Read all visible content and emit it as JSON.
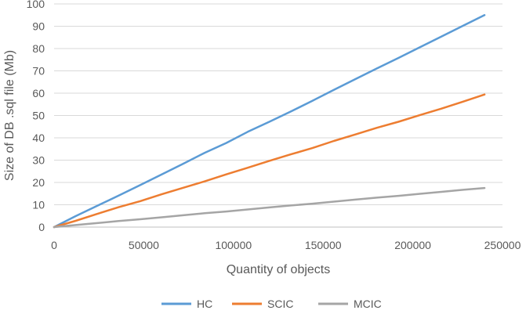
{
  "chart_data": {
    "type": "line",
    "title": "",
    "xlabel": "Quantity of objects",
    "ylabel": "Size of DB .sql file (Mb)",
    "xlim": [
      0,
      250000
    ],
    "ylim": [
      0,
      100
    ],
    "x_ticks": [
      "0",
      "50000",
      "100000",
      "150000",
      "200000",
      "250000"
    ],
    "y_ticks": [
      "0",
      "10",
      "20",
      "30",
      "40",
      "50",
      "60",
      "70",
      "80",
      "90",
      "100"
    ],
    "grid": "horizontal",
    "legend_position": "bottom",
    "series": [
      {
        "name": "HC",
        "color": "#5B9BD5",
        "points": [
          [
            0,
            0
          ],
          [
            12000,
            4.9
          ],
          [
            24000,
            9.5
          ],
          [
            36000,
            14.1
          ],
          [
            48000,
            18.8
          ],
          [
            60000,
            23.6
          ],
          [
            72000,
            28.4
          ],
          [
            84000,
            33.3
          ],
          [
            96000,
            37.7
          ],
          [
            108000,
            42.7
          ],
          [
            120000,
            47.2
          ],
          [
            132000,
            51.8
          ],
          [
            144000,
            56.6
          ],
          [
            156000,
            61.5
          ],
          [
            168000,
            66.3
          ],
          [
            180000,
            71.1
          ],
          [
            192000,
            75.8
          ],
          [
            204000,
            80.6
          ],
          [
            216000,
            85.4
          ],
          [
            228000,
            90.2
          ],
          [
            240000,
            95.0
          ]
        ]
      },
      {
        "name": "SCIC",
        "color": "#ED7D31",
        "points": [
          [
            0,
            0
          ],
          [
            12000,
            2.8
          ],
          [
            24000,
            5.9
          ],
          [
            36000,
            8.9
          ],
          [
            48000,
            11.6
          ],
          [
            60000,
            14.7
          ],
          [
            72000,
            17.6
          ],
          [
            84000,
            20.5
          ],
          [
            96000,
            23.6
          ],
          [
            108000,
            26.6
          ],
          [
            120000,
            29.7
          ],
          [
            132000,
            32.6
          ],
          [
            144000,
            35.4
          ],
          [
            156000,
            38.6
          ],
          [
            168000,
            41.5
          ],
          [
            180000,
            44.5
          ],
          [
            192000,
            47.2
          ],
          [
            204000,
            50.2
          ],
          [
            216000,
            53.1
          ],
          [
            228000,
            56.2
          ],
          [
            240000,
            59.4
          ]
        ]
      },
      {
        "name": "MCIC",
        "color": "#A5A5A5",
        "points": [
          [
            0,
            0
          ],
          [
            12000,
            0.9
          ],
          [
            24000,
            1.8
          ],
          [
            36000,
            2.7
          ],
          [
            48000,
            3.5
          ],
          [
            60000,
            4.4
          ],
          [
            72000,
            5.3
          ],
          [
            84000,
            6.2
          ],
          [
            96000,
            7.0
          ],
          [
            108000,
            7.9
          ],
          [
            120000,
            8.8
          ],
          [
            132000,
            9.7
          ],
          [
            144000,
            10.5
          ],
          [
            156000,
            11.4
          ],
          [
            168000,
            12.3
          ],
          [
            180000,
            13.2
          ],
          [
            192000,
            14.0
          ],
          [
            204000,
            14.9
          ],
          [
            216000,
            15.8
          ],
          [
            228000,
            16.7
          ],
          [
            240000,
            17.5
          ]
        ]
      }
    ]
  }
}
